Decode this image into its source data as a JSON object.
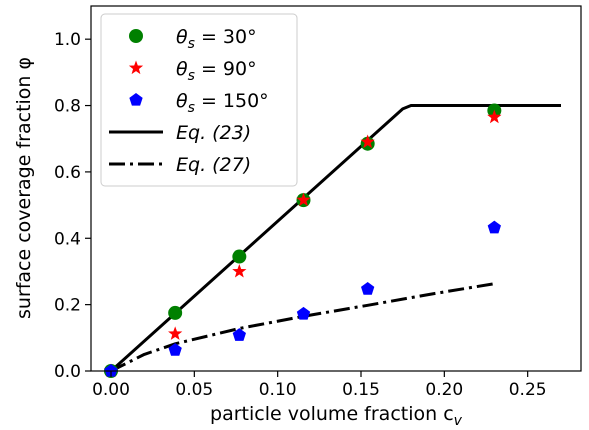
{
  "chart_data": {
    "type": "scatter",
    "xlabel": "particle volume fraction c",
    "xlabel_sub": "v",
    "ylabel": "surface coverage fraction φ",
    "xlim": [
      -0.012,
      0.282
    ],
    "ylim": [
      0.0,
      1.1
    ],
    "x_ticks": [
      0.0,
      0.05,
      0.1,
      0.15,
      0.2,
      0.25
    ],
    "x_tick_labels": [
      "0.00",
      "0.05",
      "0.10",
      "0.15",
      "0.20",
      "0.25"
    ],
    "y_ticks": [
      0.0,
      0.2,
      0.4,
      0.6,
      0.8,
      1.0
    ],
    "y_tick_labels": [
      "0.0",
      "0.2",
      "0.4",
      "0.6",
      "0.8",
      "1.0"
    ],
    "grid": false,
    "legend_position": "top-left",
    "series": [
      {
        "name": "θs = 30°",
        "name_base": "θ",
        "name_sub": "s",
        "name_rest": " = 30°",
        "kind": "scatter",
        "marker": "circle",
        "color": "#008000",
        "x": [
          0.0,
          0.0385,
          0.077,
          0.1155,
          0.154,
          0.23
        ],
        "y": [
          0.0,
          0.175,
          0.345,
          0.515,
          0.685,
          0.785
        ]
      },
      {
        "name": "θs = 90°",
        "name_base": "θ",
        "name_sub": "s",
        "name_rest": " = 90°",
        "kind": "scatter",
        "marker": "star",
        "color": "#ff0000",
        "x": [
          0.0,
          0.0385,
          0.077,
          0.1155,
          0.154,
          0.23
        ],
        "y": [
          0.0,
          0.112,
          0.3,
          0.515,
          0.69,
          0.765
        ]
      },
      {
        "name": "θs = 150°",
        "name_base": "θ",
        "name_sub": "s",
        "name_rest": " = 150°",
        "kind": "scatter",
        "marker": "pentagon",
        "color": "#0000ff",
        "x": [
          0.0,
          0.0385,
          0.077,
          0.1155,
          0.154,
          0.23
        ],
        "y": [
          0.0,
          0.063,
          0.108,
          0.172,
          0.247,
          0.432
        ]
      },
      {
        "name": "Eq. (23)",
        "kind": "line",
        "style": "solid",
        "color": "#000000",
        "x": [
          0.0,
          0.175,
          0.18,
          0.27
        ],
        "y": [
          0.0,
          0.79,
          0.8,
          0.8
        ]
      },
      {
        "name": "Eq. (27)",
        "kind": "line",
        "style": "dashdot",
        "color": "#000000",
        "x": [
          0.0,
          0.02,
          0.0385,
          0.077,
          0.1155,
          0.154,
          0.1925,
          0.23
        ],
        "y": [
          0.0,
          0.05,
          0.082,
          0.128,
          0.165,
          0.198,
          0.232,
          0.263
        ]
      }
    ]
  }
}
